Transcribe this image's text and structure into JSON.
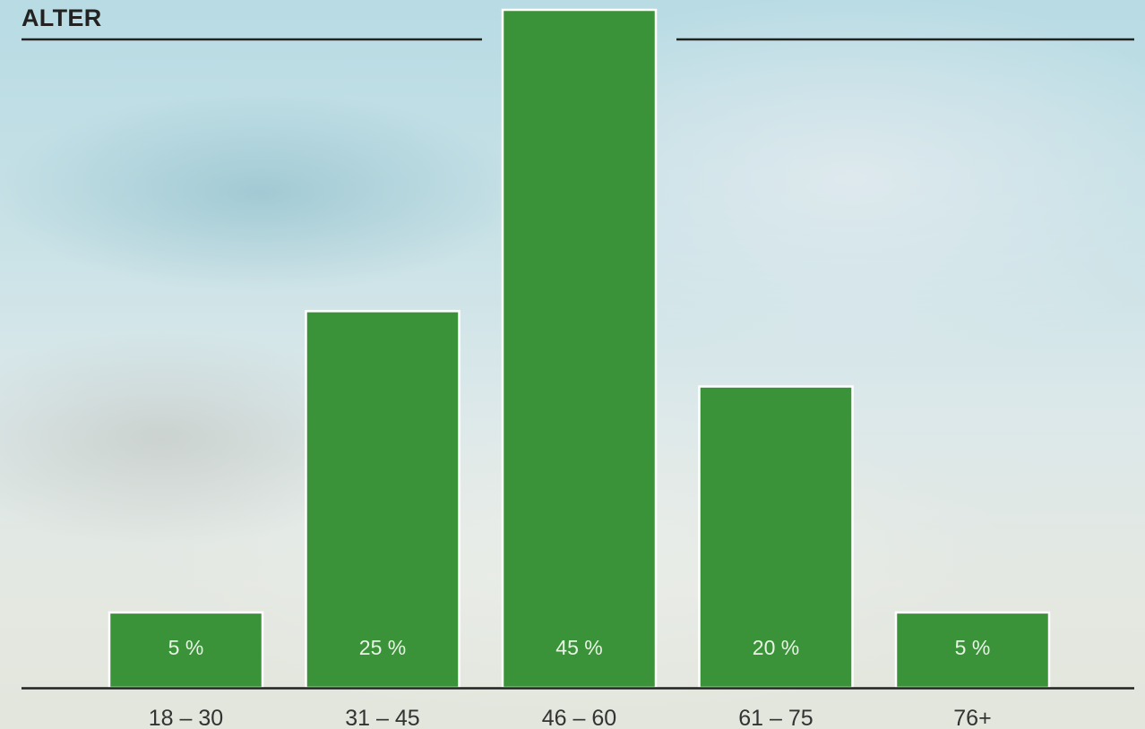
{
  "colors": {
    "bar_fill": "#3a9338",
    "bar_stroke": "#ffffff",
    "axis": "#222222",
    "bar_label": "#e9f4e6",
    "category_label": "#333333",
    "title": "#222222"
  },
  "chart_data": {
    "type": "bar",
    "title": "ALTER",
    "xlabel": "",
    "ylabel": "",
    "categories": [
      "18 – 30",
      "31 – 45",
      "46 – 60",
      "61 – 75",
      "76+"
    ],
    "values": [
      5,
      25,
      45,
      20,
      5
    ],
    "value_labels": [
      "5 %",
      "25 %",
      "45 %",
      "20 %",
      "5 %"
    ],
    "unit": "%",
    "ylim": [
      0,
      45
    ],
    "grid": false,
    "legend": "none"
  }
}
